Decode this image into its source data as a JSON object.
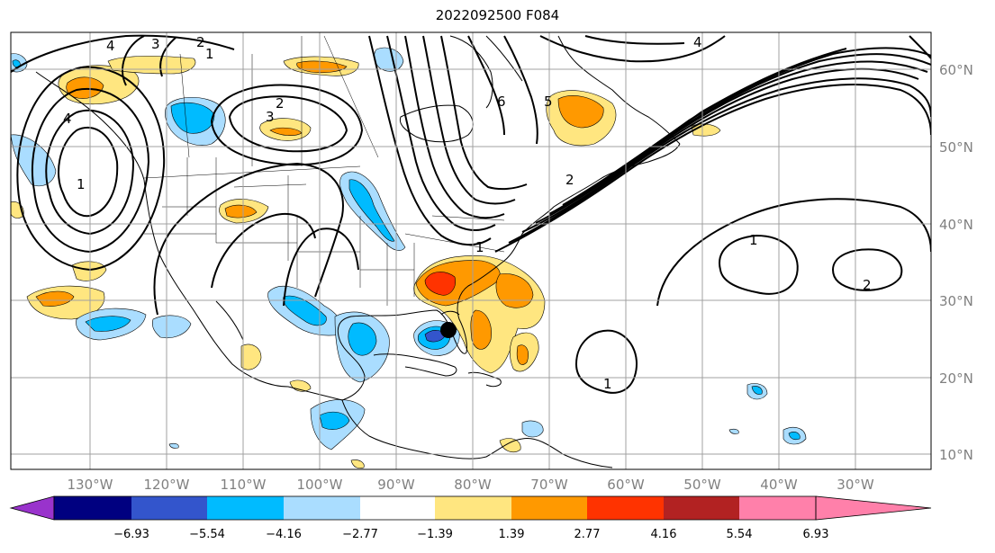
{
  "title": "2022092500 F084",
  "axes": {
    "lat_labels": [
      "60°N",
      "50°N",
      "40°N",
      "30°N",
      "20°N",
      "10°N"
    ],
    "lon_labels": [
      "130°W",
      "120°W",
      "110°W",
      "100°W",
      "90°W",
      "80°W",
      "70°W",
      "60°W",
      "50°W",
      "40°W",
      "30°W"
    ]
  },
  "colorbar": {
    "ticks": [
      "−6.93",
      "−5.54",
      "−4.16",
      "−2.77",
      "−1.39",
      "1.39",
      "2.77",
      "4.16",
      "5.54",
      "6.93"
    ],
    "colors": [
      "#9933cc",
      "#000080",
      "#3355cc",
      "#00bbff",
      "#aaddff",
      "#ffffff",
      "#ffe680",
      "#ff9900",
      "#ff3300",
      "#b22222",
      "#ff80aa"
    ]
  },
  "contour_labels": [
    "4",
    "3",
    "2",
    "1",
    "2",
    "3",
    "4",
    "6",
    "5",
    "4",
    "1",
    "2",
    "1",
    "1",
    "2",
    "1"
  ],
  "colors": {
    "gridline": "#a0a0a0",
    "contour": "#000000",
    "storm_marker": "#000000"
  },
  "storm_marker": {
    "lon": -83.5,
    "lat": 26.3
  }
}
